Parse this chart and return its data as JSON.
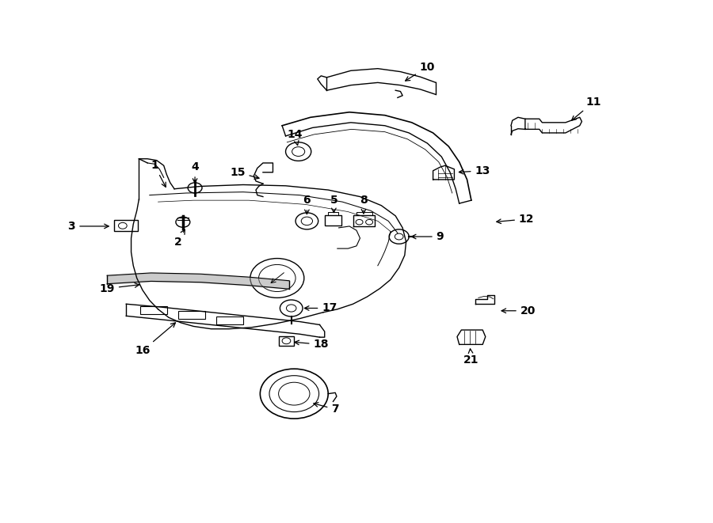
{
  "background_color": "#ffffff",
  "fig_width": 9.0,
  "fig_height": 6.61,
  "dpi": 100,
  "label_data": {
    "1": [
      0.215,
      0.685,
      0.233,
      0.638
    ],
    "2": [
      0.248,
      0.538,
      0.26,
      0.567
    ],
    "3": [
      0.098,
      0.568,
      0.155,
      0.568
    ],
    "4": [
      0.272,
      0.682,
      0.272,
      0.645
    ],
    "5": [
      0.468,
      0.618,
      0.468,
      0.588
    ],
    "6": [
      0.43,
      0.618,
      0.43,
      0.585
    ],
    "7": [
      0.47,
      0.215,
      0.435,
      0.228
    ],
    "8": [
      0.51,
      0.618,
      0.51,
      0.586
    ],
    "9": [
      0.618,
      0.548,
      0.573,
      0.548
    ],
    "10": [
      0.6,
      0.875,
      0.565,
      0.845
    ],
    "11": [
      0.835,
      0.808,
      0.8,
      0.768
    ],
    "12": [
      0.74,
      0.582,
      0.693,
      0.576
    ],
    "13": [
      0.678,
      0.675,
      0.64,
      0.672
    ],
    "14": [
      0.413,
      0.745,
      0.418,
      0.718
    ],
    "15": [
      0.332,
      0.672,
      0.367,
      0.659
    ],
    "16": [
      0.198,
      0.328,
      0.248,
      0.386
    ],
    "17": [
      0.462,
      0.41,
      0.422,
      0.41
    ],
    "18": [
      0.45,
      0.34,
      0.408,
      0.345
    ],
    "19": [
      0.148,
      0.448,
      0.198,
      0.456
    ],
    "20": [
      0.742,
      0.405,
      0.7,
      0.405
    ],
    "21": [
      0.662,
      0.31,
      0.66,
      0.338
    ]
  }
}
